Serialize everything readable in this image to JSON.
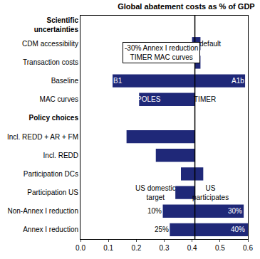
{
  "chart_data": {
    "type": "bar",
    "orientation": "horizontal",
    "title": "Global abatement costs as % of GDP",
    "categories": [
      "Scientific\nuncertainties",
      "CDM accessibility",
      "Transaction costs",
      "Baseline",
      "MAC curves",
      "Policy choices",
      "Incl. REDD + AR + FM",
      "Incl. REDD",
      "Participation DCs",
      "Participation US",
      "Non-Annex I reduction",
      "Annex I reduction"
    ],
    "low": [
      null,
      0.4,
      0.41,
      0.115,
      0.21,
      null,
      0.165,
      0.27,
      0.36,
      0.34,
      0.295,
      0.32
    ],
    "high": [
      null,
      0.43,
      0.43,
      0.59,
      0.41,
      null,
      0.41,
      0.41,
      0.44,
      0.41,
      0.585,
      0.6
    ],
    "color": "#1f2878",
    "reference_line": 0.41,
    "xlim": [
      0,
      0.6
    ],
    "xticks": [
      {
        "value": 0,
        "label": "0.0"
      },
      0.1,
      0.2,
      0.3,
      0.4,
      0.5,
      0.6
    ],
    "grid": false,
    "annotations": [
      {
        "text": "-30% Annex I reduction\nTIMER MAC curves",
        "x": 0.29,
        "y": 1.5,
        "color": "#000000",
        "marker": "box"
      },
      {
        "text": "default",
        "x": 0.465,
        "y": 1,
        "color": "#000000"
      },
      {
        "text": "B1",
        "x": 0.135,
        "y": 3,
        "color": "#ffffff"
      },
      {
        "text": "A1b",
        "x": 0.565,
        "y": 3,
        "color": "#ffffff"
      },
      {
        "text": "POLES",
        "x": 0.245,
        "y": 4,
        "color": "#ffffff"
      },
      {
        "text": "TIMER",
        "x": 0.445,
        "y": 4,
        "color": "#000000"
      },
      {
        "text": "US domestic\ntarget",
        "x": 0.27,
        "y": 9,
        "color": "#000000"
      },
      {
        "text": "US\nparticipates",
        "x": 0.465,
        "y": 9,
        "color": "#000000"
      },
      {
        "text": "10%",
        "x": 0.265,
        "y": 10,
        "color": "#000000"
      },
      {
        "text": "30%",
        "x": 0.555,
        "y": 10,
        "color": "#ffffff"
      },
      {
        "text": "25%",
        "x": 0.29,
        "y": 11,
        "color": "#000000"
      },
      {
        "text": "40%",
        "x": 0.565,
        "y": 11,
        "color": "#ffffff"
      }
    ]
  }
}
